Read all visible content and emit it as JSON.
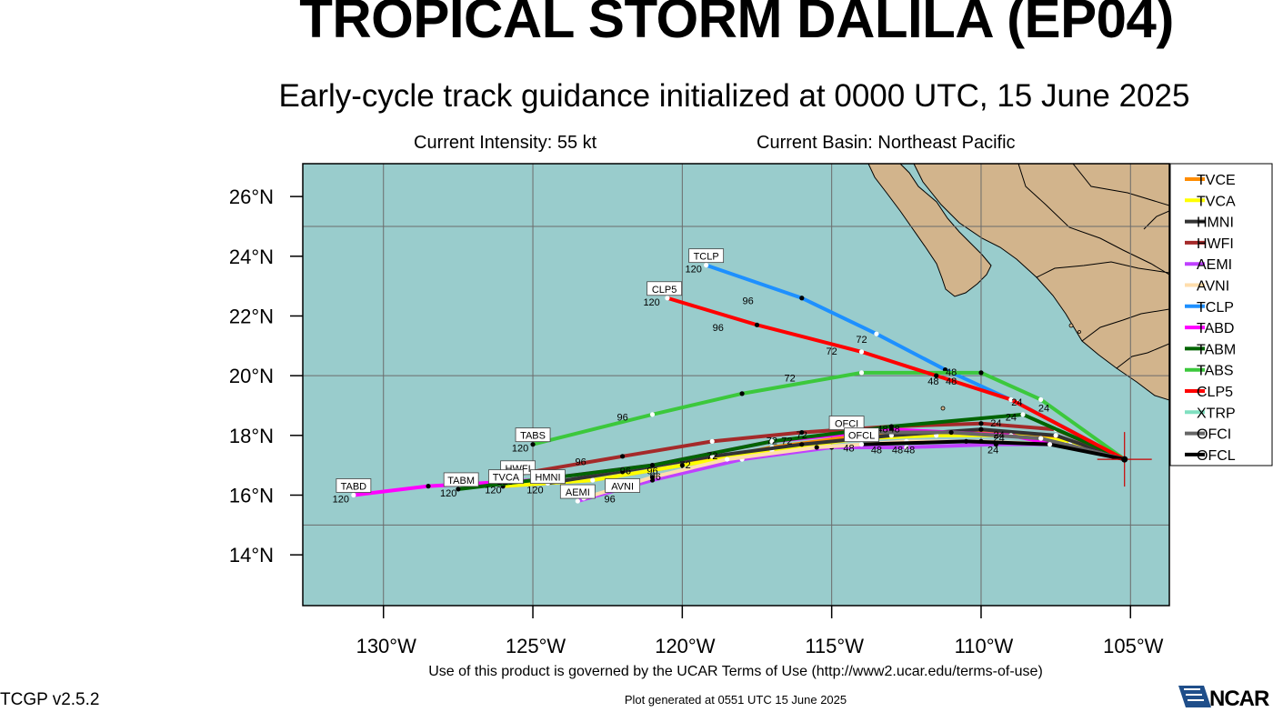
{
  "header": {
    "title": "TROPICAL STORM DALILA (EP04)",
    "subtitle": "Early-cycle track guidance initialized at 0000 UTC, 15 June 2025",
    "intensity": "Current Intensity: 55 kt",
    "basin": "Current Basin: Northeast Pacific"
  },
  "map": {
    "lat_labels": [
      "26°N",
      "24°N",
      "22°N",
      "20°N",
      "18°N",
      "16°N",
      "14°N"
    ],
    "lon_labels": [
      "130°W",
      "125°W",
      "120°W",
      "115°W",
      "110°W",
      "105°W"
    ],
    "ocean_color": "#99cccc",
    "land_color": "#d2b48c",
    "current_position": {
      "lon": -105.2,
      "lat": 17.2
    }
  },
  "legend": [
    "TVCE",
    "TVCA",
    "HMNI",
    "HWFI",
    "AEMI",
    "AVNI",
    "TCLP",
    "TABD",
    "TABM",
    "TABS",
    "CLP5",
    "XTRP",
    "OFCI",
    "OFCL"
  ],
  "chart_data": {
    "type": "line",
    "x_label": "",
    "y_label": "",
    "x_range_lon": [
      -132.7,
      -103.7
    ],
    "y_range_lat": [
      12.3,
      27.1
    ],
    "series": [
      {
        "name": "TVCE",
        "color": "#ff8c00",
        "lon": [
          -105.2,
          -107,
          -109,
          -111.5,
          -114,
          -117,
          -120,
          -123,
          -126
        ],
        "lat": [
          17.2,
          17.8,
          18.1,
          18.1,
          18.0,
          17.6,
          17.0,
          16.5,
          16.3
        ]
      },
      {
        "name": "TVCA",
        "color": "#ffff00",
        "lon": [
          -105.2,
          -107,
          -109,
          -111.5,
          -114,
          -117,
          -120,
          -123,
          -126
        ],
        "lat": [
          17.2,
          17.8,
          18.0,
          18.0,
          17.9,
          17.5,
          17.0,
          16.5,
          16.3
        ]
      },
      {
        "name": "HMNI",
        "color": "#333333",
        "lon": [
          -105.2,
          -107.5,
          -110,
          -113,
          -116,
          -119,
          -122,
          -124.5
        ],
        "lat": [
          17.2,
          18.0,
          18.2,
          18.0,
          17.7,
          17.3,
          16.8,
          16.4
        ]
      },
      {
        "name": "HWFI",
        "color": "#a52a2a",
        "lon": [
          -105.2,
          -107.5,
          -110,
          -113,
          -116,
          -119,
          -122,
          -125.5
        ],
        "lat": [
          17.2,
          18.2,
          18.4,
          18.3,
          18.1,
          17.8,
          17.3,
          16.7
        ]
      },
      {
        "name": "AEMI",
        "color": "#bf40ff",
        "lon": [
          -105.2,
          -107.2,
          -109.5,
          -112.5,
          -115,
          -118,
          -121,
          -123.5
        ],
        "lat": [
          17.2,
          17.7,
          17.7,
          17.6,
          17.6,
          17.2,
          16.5,
          15.8
        ]
      },
      {
        "name": "AVNI",
        "color": "#ffdead",
        "lon": [
          -105.2,
          -107.5,
          -110,
          -112.5,
          -115.5,
          -118.5,
          -121,
          -123.3
        ],
        "lat": [
          17.2,
          17.7,
          17.8,
          17.8,
          17.6,
          17.2,
          16.6,
          15.9
        ]
      },
      {
        "name": "TCLP",
        "color": "#1e90ff",
        "lon": [
          -105.2,
          -108.8,
          -111.2,
          -113.5,
          -116,
          -119.2
        ],
        "lat": [
          17.2,
          19.1,
          20.2,
          21.4,
          22.6,
          23.7
        ]
      },
      {
        "name": "TABD",
        "color": "#ff00ff",
        "lon": [
          -105.2,
          -109,
          -113,
          -117,
          -121,
          -125,
          -128.5,
          -131
        ],
        "lat": [
          17.2,
          18.0,
          18.2,
          17.8,
          17.0,
          16.5,
          16.3,
          16.0
        ]
      },
      {
        "name": "TABM",
        "color": "#006400",
        "lon": [
          -105.2,
          -108.6,
          -113,
          -117,
          -121,
          -125,
          -127.5
        ],
        "lat": [
          17.2,
          18.7,
          18.3,
          17.8,
          17.0,
          16.5,
          16.2
        ]
      },
      {
        "name": "TABS",
        "color": "#3cc83c",
        "lon": [
          -105.2,
          -108,
          -110,
          -114,
          -118,
          -121,
          -125
        ],
        "lat": [
          17.2,
          19.2,
          20.1,
          20.1,
          19.4,
          18.7,
          17.7
        ]
      },
      {
        "name": "CLP5",
        "color": "#ff0000",
        "lon": [
          -105.2,
          -109,
          -111.5,
          -114,
          -117.5,
          -120.5
        ],
        "lat": [
          17.2,
          19.2,
          20.0,
          20.8,
          21.7,
          22.6
        ]
      },
      {
        "name": "XTRP",
        "color": "#80e0c0",
        "lon": [],
        "lat": []
      },
      {
        "name": "OFCI",
        "color": "#666666",
        "lon": [
          -105.2,
          -108,
          -111,
          -114.5
        ],
        "lat": [
          17.2,
          17.9,
          18.1,
          18.1
        ]
      },
      {
        "name": "OFCL",
        "color": "#000000",
        "lon": [
          -105.2,
          -107.7,
          -110.5,
          -114.0
        ],
        "lat": [
          17.2,
          17.7,
          17.8,
          17.7
        ]
      }
    ],
    "box_labels": [
      {
        "text": "TCLP",
        "lon": -119.2,
        "lat": 23.7,
        "hour": "120"
      },
      {
        "text": "CLP5",
        "lon": -120.6,
        "lat": 22.6,
        "hour": "120"
      },
      {
        "text": "TABS",
        "lon": -125.0,
        "lat": 17.7,
        "hour": "120"
      },
      {
        "text": "TABD",
        "lon": -131.0,
        "lat": 16.0,
        "hour": "120"
      },
      {
        "text": "TABM",
        "lon": -127.4,
        "lat": 16.2,
        "hour": "120"
      },
      {
        "text": "HWFI",
        "lon": -125.5,
        "lat": 16.6,
        "hour": "120"
      },
      {
        "text": "HMNI",
        "lon": -124.5,
        "lat": 16.3,
        "hour": "120"
      },
      {
        "text": "TVCA",
        "lon": -125.9,
        "lat": 16.3,
        "hour": "120"
      },
      {
        "text": "AEMI",
        "lon": -123.5,
        "lat": 15.8,
        "hour": ""
      },
      {
        "text": "AVNI",
        "lon": -122.0,
        "lat": 16.0,
        "hour": "96"
      },
      {
        "text": "OFCI",
        "lon": -114.5,
        "lat": 18.1,
        "hour": ""
      },
      {
        "text": "OFCL",
        "lon": -114.0,
        "lat": 17.7,
        "hour": "48"
      }
    ],
    "hour_labels": [
      {
        "text": "96",
        "lon": -117.8,
        "lat": 22.4
      },
      {
        "text": "72",
        "lon": -114.0,
        "lat": 21.1
      },
      {
        "text": "96",
        "lon": -118.8,
        "lat": 21.5
      },
      {
        "text": "72",
        "lon": -115.0,
        "lat": 20.7
      },
      {
        "text": "48",
        "lon": -111.0,
        "lat": 20.0
      },
      {
        "text": "48",
        "lon": -111.6,
        "lat": 19.7
      },
      {
        "text": "48",
        "lon": -111.0,
        "lat": 19.7
      },
      {
        "text": "24",
        "lon": -108.8,
        "lat": 19.0
      },
      {
        "text": "24",
        "lon": -107.9,
        "lat": 18.8
      },
      {
        "text": "24",
        "lon": -109.0,
        "lat": 18.5
      },
      {
        "text": "96",
        "lon": -122.0,
        "lat": 18.5
      },
      {
        "text": "72",
        "lon": -116.4,
        "lat": 19.8
      },
      {
        "text": "96",
        "lon": -123.4,
        "lat": 17.0
      },
      {
        "text": "96",
        "lon": -121.9,
        "lat": 16.7
      },
      {
        "text": "96",
        "lon": -121.0,
        "lat": 16.7
      },
      {
        "text": "96",
        "lon": -120.9,
        "lat": 16.5
      },
      {
        "text": "72",
        "lon": -119.9,
        "lat": 16.9
      },
      {
        "text": "72",
        "lon": -119.0,
        "lat": 17.2
      },
      {
        "text": "72",
        "lon": -117.0,
        "lat": 17.7
      },
      {
        "text": "72",
        "lon": -116.5,
        "lat": 17.7
      },
      {
        "text": "72",
        "lon": -116.0,
        "lat": 17.9
      },
      {
        "text": "48",
        "lon": -113.5,
        "lat": 17.4
      },
      {
        "text": "48",
        "lon": -112.8,
        "lat": 17.4
      },
      {
        "text": "48",
        "lon": -112.4,
        "lat": 17.4
      },
      {
        "text": "48",
        "lon": -112.9,
        "lat": 18.1
      },
      {
        "text": "48",
        "lon": -113.3,
        "lat": 18.1
      },
      {
        "text": "24",
        "lon": -109.6,
        "lat": 17.4
      },
      {
        "text": "24",
        "lon": -109.4,
        "lat": 17.8
      },
      {
        "text": "24",
        "lon": -109.5,
        "lat": 18.3
      },
      {
        "text": "24",
        "lon": -109.4,
        "lat": 17.9
      }
    ]
  },
  "footer": {
    "terms": "Use of this product is governed by the UCAR Terms of Use (http://www2.ucar.edu/terms-of-use)",
    "version": "TCGP v2.5.2",
    "generated": "Plot generated at 0551 UTC   15 June 2025",
    "logo": "NCAR"
  }
}
